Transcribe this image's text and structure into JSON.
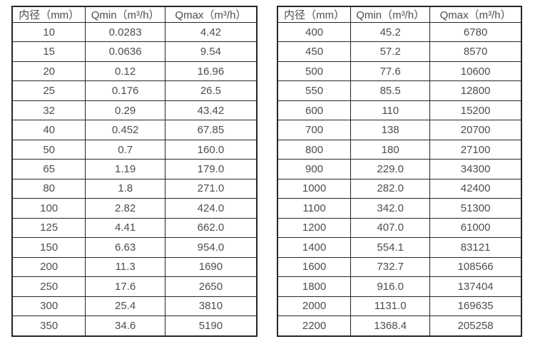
{
  "chart_data": [
    {
      "type": "table",
      "title": "",
      "headers": [
        "内径（mm）",
        "Qmin（m³/h）",
        "Qmax（m³/h）"
      ],
      "rows": [
        [
          "10",
          "0.0283",
          "4.42"
        ],
        [
          "15",
          "0.0636",
          "9.54"
        ],
        [
          "20",
          "0.12",
          "16.96"
        ],
        [
          "25",
          "0.176",
          "26.5"
        ],
        [
          "32",
          "0.29",
          "43.42"
        ],
        [
          "40",
          "0.452",
          "67.85"
        ],
        [
          "50",
          "0.7",
          "160.0"
        ],
        [
          "65",
          "1.19",
          "179.0"
        ],
        [
          "80",
          "1.8",
          "271.0"
        ],
        [
          "100",
          "2.82",
          "424.0"
        ],
        [
          "125",
          "4.41",
          "662.0"
        ],
        [
          "150",
          "6.63",
          "954.0"
        ],
        [
          "200",
          "11.3",
          "1690"
        ],
        [
          "250",
          "17.6",
          "2650"
        ],
        [
          "300",
          "25.4",
          "3810"
        ],
        [
          "350",
          "34.6",
          "5190"
        ]
      ]
    },
    {
      "type": "table",
      "title": "",
      "headers": [
        "内径（mm）",
        "Qmin（m³/h）",
        "Qmax（m³/h）"
      ],
      "rows": [
        [
          "400",
          "45.2",
          "6780"
        ],
        [
          "450",
          "57.2",
          "8570"
        ],
        [
          "500",
          "77.6",
          "10600"
        ],
        [
          "550",
          "85.5",
          "12800"
        ],
        [
          "600",
          "110",
          "15200"
        ],
        [
          "700",
          "138",
          "20700"
        ],
        [
          "800",
          "180",
          "27100"
        ],
        [
          "900",
          "229.0",
          "34300"
        ],
        [
          "1000",
          "282.0",
          "42400"
        ],
        [
          "1100",
          "342.0",
          "51300"
        ],
        [
          "1200",
          "407.0",
          "61000"
        ],
        [
          "1400",
          "554.1",
          "83121"
        ],
        [
          "1600",
          "732.7",
          "108566"
        ],
        [
          "1800",
          "916.0",
          "137404"
        ],
        [
          "2000",
          "1131.0",
          "169635"
        ],
        [
          "2200",
          "1368.4",
          "205258"
        ]
      ]
    }
  ],
  "colors": {
    "border": "#262626",
    "text": "#4d4d4d",
    "background": "#ffffff"
  }
}
